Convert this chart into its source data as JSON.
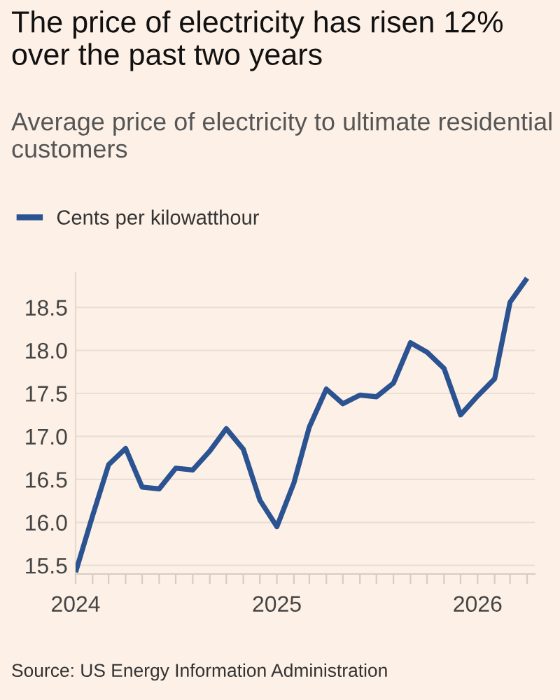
{
  "chart_data": {
    "type": "line",
    "title": "The price of electricity has risen 12% over the past two years",
    "subtitle": "Average price of electricity to ultimate residential customers",
    "annotations": [
      "Source: US Energy Information Administration"
    ],
    "x": [
      "2024-01",
      "2024-02",
      "2024-03",
      "2024-04",
      "2024-05",
      "2024-06",
      "2024-07",
      "2024-08",
      "2024-09",
      "2024-10",
      "2024-11",
      "2024-12",
      "2025-01",
      "2025-02",
      "2025-03",
      "2025-04",
      "2025-05",
      "2025-06",
      "2025-07",
      "2025-08",
      "2025-09",
      "2025-10",
      "2025-11",
      "2025-12",
      "2026-01",
      "2026-02",
      "2026-03",
      "2026-04"
    ],
    "series": [
      {
        "name": "Cents per kilowatthour",
        "color": "#2b5291",
        "values": [
          15.42,
          16.08,
          16.67,
          16.86,
          16.41,
          16.39,
          16.63,
          16.61,
          16.83,
          17.09,
          16.85,
          16.26,
          15.95,
          16.46,
          17.11,
          17.55,
          17.38,
          17.48,
          17.46,
          17.62,
          18.09,
          17.98,
          17.79,
          17.25,
          17.47,
          17.67,
          18.56,
          18.84
        ]
      }
    ],
    "xlim": [
      "2024-01-01",
      "2026-04-15"
    ],
    "xticks": [
      {
        "value": "2024-01",
        "label": "2024"
      },
      {
        "value": "2024-02",
        "label": null
      },
      {
        "value": "2024-03",
        "label": null
      },
      {
        "value": "2024-04",
        "label": null
      },
      {
        "value": "2024-05",
        "label": null
      },
      {
        "value": "2024-06",
        "label": null
      },
      {
        "value": "2024-07",
        "label": null
      },
      {
        "value": "2024-08",
        "label": null
      },
      {
        "value": "2024-09",
        "label": null
      },
      {
        "value": "2024-10",
        "label": null
      },
      {
        "value": "2024-11",
        "label": null
      },
      {
        "value": "2024-12",
        "label": null
      },
      {
        "value": "2025-01",
        "label": "2025"
      },
      {
        "value": "2025-02",
        "label": null
      },
      {
        "value": "2025-03",
        "label": null
      },
      {
        "value": "2025-04",
        "label": null
      },
      {
        "value": "2025-05",
        "label": null
      },
      {
        "value": "2025-06",
        "label": null
      },
      {
        "value": "2025-07",
        "label": null
      },
      {
        "value": "2025-08",
        "label": null
      },
      {
        "value": "2025-09",
        "label": null
      },
      {
        "value": "2025-10",
        "label": null
      },
      {
        "value": "2025-11",
        "label": null
      },
      {
        "value": "2025-12",
        "label": null
      },
      {
        "value": "2026-01",
        "label": "2026"
      },
      {
        "value": "2026-02",
        "label": null
      },
      {
        "value": "2026-03",
        "label": null
      },
      {
        "value": "2026-04",
        "label": null
      }
    ],
    "ylim": [
      15.4,
      18.9
    ],
    "yticks": [
      {
        "value": 15.5,
        "label": "15.5"
      },
      {
        "value": 16.0,
        "label": "16.0"
      },
      {
        "value": 16.5,
        "label": "16.5"
      },
      {
        "value": 17.0,
        "label": "17.0"
      },
      {
        "value": 17.5,
        "label": "17.5"
      },
      {
        "value": 18.0,
        "label": "18.0"
      },
      {
        "value": 18.5,
        "label": "18.5"
      }
    ],
    "grid": "y",
    "legend": "top left",
    "marker": "none",
    "line_style": "solid"
  }
}
